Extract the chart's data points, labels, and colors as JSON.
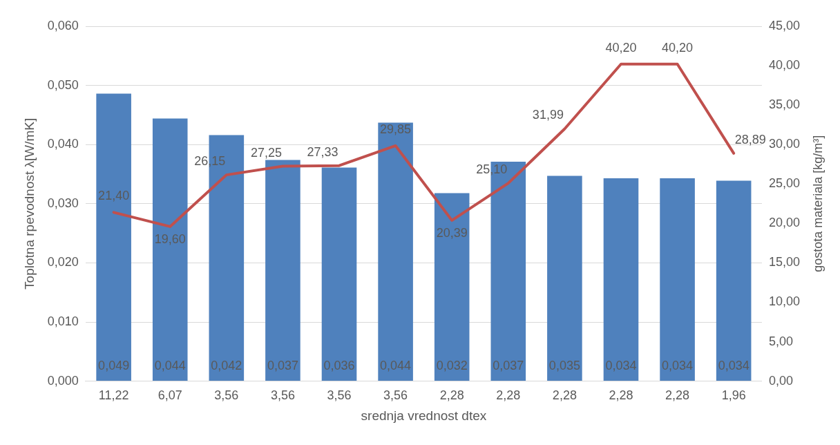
{
  "chart_data": {
    "type": "bar",
    "xlabel": "srednja vrednost dtex",
    "ylabel": "Toplotna rpevodnost λ[W/mK]",
    "y2label": "gostota materiala [kg/m³]",
    "categories": [
      "11,22",
      "6,07",
      "3,56",
      "3,56",
      "3,56",
      "3,56",
      "2,28",
      "2,28",
      "2,28",
      "2,28",
      "2,28",
      "1,96"
    ],
    "series": [
      {
        "color": "#4f81bd",
        "values": [
          0.0486,
          0.0444,
          0.0416,
          0.0374,
          0.0361,
          0.0437,
          0.0318,
          0.0371,
          0.0347,
          0.0343,
          0.0343,
          0.0339
        ],
        "value_labels": [
          "0,049",
          "0,044",
          "0,042",
          "0,037",
          "0,036",
          "0,044",
          "0,032",
          "0,037",
          "0,035",
          "0,034",
          "0,034",
          "0,034"
        ]
      },
      {
        "type": "line",
        "axis": "y2",
        "color": "#c0504d",
        "values": [
          21.4,
          19.6,
          26.15,
          27.25,
          27.33,
          29.85,
          20.39,
          25.1,
          31.99,
          40.2,
          40.2,
          28.89
        ],
        "value_labels": [
          "21,40",
          "19,60",
          "26,15",
          "27,25",
          "27,33",
          "29,85",
          "20,39",
          "25,10",
          "31,99",
          "40,20",
          "40,20",
          "28,89"
        ]
      }
    ],
    "ylim": [
      0,
      0.06
    ],
    "yticks": [
      {
        "value": 0,
        "label": "0,000"
      },
      {
        "value": 0.01,
        "label": "0,010"
      },
      {
        "value": 0.02,
        "label": "0,020"
      },
      {
        "value": 0.03,
        "label": "0,030"
      },
      {
        "value": 0.04,
        "label": "0,040"
      },
      {
        "value": 0.05,
        "label": "0,050"
      },
      {
        "value": 0.06,
        "label": "0,060"
      }
    ],
    "y2lim": [
      0,
      45
    ],
    "y2ticks": [
      {
        "value": 0,
        "label": "0,00"
      },
      {
        "value": 5,
        "label": "5,00"
      },
      {
        "value": 10,
        "label": "10,00"
      },
      {
        "value": 15,
        "label": "15,00"
      },
      {
        "value": 20,
        "label": "20,00"
      },
      {
        "value": 25,
        "label": "25,00"
      },
      {
        "value": 30,
        "label": "30,00"
      },
      {
        "value": 35,
        "label": "35,00"
      },
      {
        "value": 40,
        "label": "40,00"
      },
      {
        "value": 45,
        "label": "45,00"
      }
    ],
    "grid": "y",
    "legend": false
  }
}
